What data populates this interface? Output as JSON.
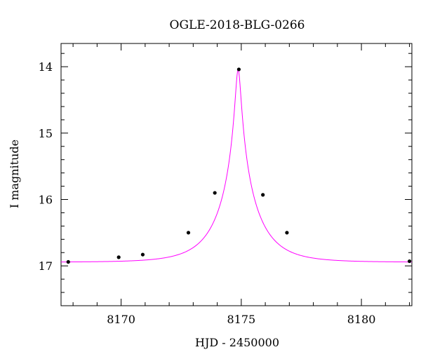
{
  "chart_data": {
    "type": "line",
    "title": "OGLE-2018-BLG-0266",
    "xlabel": "HJD - 2450000",
    "ylabel": "I magnitude",
    "xlim": [
      8167.5,
      8182.1
    ],
    "ylim": [
      17.6,
      13.65
    ],
    "y_inverted": true,
    "x_ticks": [
      8170,
      8175,
      8180
    ],
    "y_ticks": [
      14,
      15,
      16,
      17
    ],
    "grid": false,
    "model_color": "#ff00ff",
    "point_color": "#000000",
    "model": {
      "name": "",
      "t0": 8174.87,
      "peak_mag": 14.04,
      "baseline_mag": 16.945,
      "half_width_days": 0.3
    },
    "series": [
      {
        "name": "",
        "x": [
          8167.8,
          8169.9,
          8170.9,
          8172.8,
          8173.9,
          8174.9,
          8175.9,
          8176.9,
          8182.0
        ],
        "y": [
          16.94,
          16.87,
          16.83,
          16.5,
          15.9,
          14.04,
          15.93,
          16.5,
          16.93
        ]
      }
    ]
  }
}
